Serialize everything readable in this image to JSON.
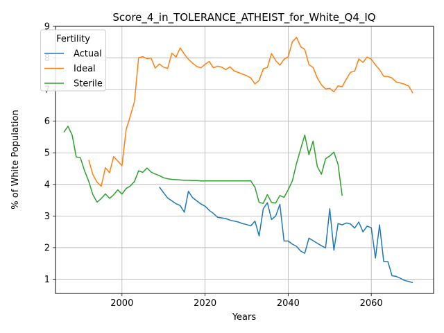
{
  "chart_data": {
    "type": "line",
    "title": "Score_4_in_TOLERANCE_ATHEIST_for_White_Q4_IQ",
    "xlabel": "Years",
    "ylabel": "% of White Population",
    "xlim": [
      1984,
      2075
    ],
    "ylim": [
      0.55,
      9.0
    ],
    "xticks": [
      2000,
      2020,
      2040,
      2060
    ],
    "yticks": [
      1,
      2,
      3,
      4,
      5,
      6,
      7,
      8,
      9
    ],
    "grid": true,
    "legend": {
      "title": "Fertility",
      "placement": "upper-left"
    },
    "series": [
      {
        "name": "Actual",
        "color": "#1f77b4",
        "x": [
          2009,
          2010,
          2011,
          2012,
          2013,
          2014,
          2015,
          2016,
          2017,
          2018,
          2019,
          2020,
          2021,
          2022,
          2023,
          2024,
          2025,
          2026,
          2027,
          2028,
          2029,
          2030,
          2031,
          2032,
          2033,
          2034,
          2035,
          2036,
          2037,
          2038,
          2039,
          2040,
          2041,
          2042,
          2043,
          2044,
          2045,
          2046,
          2047,
          2048,
          2049,
          2050,
          2051,
          2052,
          2053,
          2054,
          2055,
          2056,
          2057,
          2058,
          2059,
          2060,
          2061,
          2062,
          2063,
          2064,
          2065,
          2066,
          2067,
          2068,
          2069,
          2070
        ],
        "y": [
          3.92,
          3.74,
          3.57,
          3.48,
          3.39,
          3.33,
          3.12,
          3.78,
          3.58,
          3.48,
          3.38,
          3.31,
          3.18,
          3.08,
          2.96,
          2.94,
          2.92,
          2.87,
          2.84,
          2.81,
          2.76,
          2.73,
          2.69,
          2.84,
          2.37,
          3.23,
          3.42,
          2.89,
          3.0,
          3.37,
          2.21,
          2.21,
          2.11,
          2.04,
          1.89,
          1.82,
          2.3,
          2.22,
          2.14,
          2.06,
          1.99,
          3.23,
          1.92,
          2.76,
          2.72,
          2.78,
          2.75,
          2.62,
          2.81,
          2.5,
          2.68,
          2.63,
          1.67,
          2.72,
          1.56,
          1.56,
          1.11,
          1.09,
          1.03,
          0.96,
          0.93,
          0.89
        ]
      },
      {
        "name": "Ideal",
        "color": "#ff7f0e",
        "x": [
          1992,
          1993,
          1994,
          1995,
          1996,
          1997,
          1998,
          1999,
          2000,
          2001,
          2002,
          2003,
          2004,
          2005,
          2006,
          2007,
          2008,
          2009,
          2010,
          2011,
          2012,
          2013,
          2014,
          2015,
          2016,
          2017,
          2018,
          2019,
          2020,
          2021,
          2022,
          2023,
          2024,
          2025,
          2026,
          2027,
          2028,
          2029,
          2030,
          2031,
          2032,
          2033,
          2034,
          2035,
          2036,
          2037,
          2038,
          2039,
          2040,
          2041,
          2042,
          2043,
          2044,
          2045,
          2046,
          2047,
          2048,
          2049,
          2050,
          2051,
          2052,
          2053,
          2054,
          2055,
          2056,
          2057,
          2058,
          2059,
          2060,
          2061,
          2062,
          2063,
          2064,
          2065,
          2066,
          2067,
          2068,
          2069,
          2070
        ],
        "y": [
          4.77,
          4.31,
          4.07,
          3.94,
          4.53,
          4.37,
          4.88,
          4.74,
          4.59,
          5.73,
          6.16,
          6.62,
          8.01,
          8.04,
          7.98,
          8.0,
          7.68,
          7.81,
          7.71,
          7.67,
          8.15,
          8.03,
          8.32,
          8.12,
          7.96,
          7.84,
          7.73,
          7.69,
          7.8,
          7.89,
          7.69,
          7.74,
          7.71,
          7.63,
          7.72,
          7.59,
          7.54,
          7.49,
          7.44,
          7.37,
          7.18,
          7.29,
          7.66,
          7.7,
          8.14,
          7.92,
          7.77,
          7.96,
          8.04,
          8.51,
          8.65,
          8.36,
          8.27,
          7.79,
          7.7,
          7.37,
          7.15,
          7.02,
          7.04,
          6.93,
          7.12,
          7.09,
          7.33,
          7.55,
          7.58,
          7.97,
          7.86,
          8.03,
          7.96,
          7.78,
          7.63,
          7.42,
          7.41,
          7.37,
          7.24,
          7.21,
          7.17,
          7.11,
          6.89
        ]
      },
      {
        "name": "Sterile",
        "color": "#2ca02c",
        "x": [
          1986,
          1987,
          1988,
          1989,
          1990,
          1991,
          1992,
          1993,
          1994,
          1995,
          1996,
          1997,
          1998,
          1999,
          2000,
          2001,
          2002,
          2003,
          2004,
          2005,
          2006,
          2007,
          2008,
          2009,
          2010,
          2011,
          2012,
          2013,
          2014,
          2015,
          2016,
          2017,
          2018,
          2019,
          2020,
          2021,
          2022,
          2023,
          2024,
          2025,
          2026,
          2027,
          2028,
          2029,
          2030,
          2031,
          2032,
          2033,
          2034,
          2035,
          2036,
          2037,
          2038,
          2039,
          2040,
          2041,
          2042,
          2043,
          2044,
          2045,
          2046,
          2047,
          2048,
          2049,
          2050,
          2051,
          2052,
          2053
        ],
        "y": [
          5.65,
          5.84,
          5.56,
          4.87,
          4.84,
          4.43,
          4.1,
          3.67,
          3.44,
          3.55,
          3.7,
          3.56,
          3.67,
          3.83,
          3.69,
          3.87,
          3.95,
          4.09,
          4.43,
          4.38,
          4.52,
          4.39,
          4.33,
          4.28,
          4.21,
          4.18,
          4.16,
          4.15,
          4.14,
          4.13,
          4.13,
          4.12,
          4.12,
          4.11,
          4.11,
          4.11,
          4.11,
          4.11,
          4.11,
          4.11,
          4.11,
          4.11,
          4.11,
          4.11,
          4.11,
          4.11,
          3.91,
          3.43,
          3.4,
          3.68,
          3.43,
          3.41,
          3.65,
          3.59,
          3.83,
          4.11,
          4.66,
          5.12,
          5.56,
          4.94,
          5.37,
          4.57,
          4.32,
          4.81,
          4.9,
          5.02,
          4.63,
          3.64
        ]
      }
    ]
  }
}
